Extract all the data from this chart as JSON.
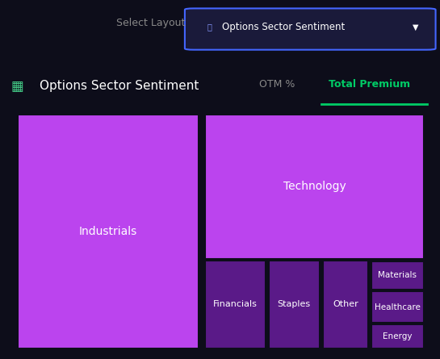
{
  "title": "Options Sector Sentiment",
  "subtitle_left": "OTM %",
  "subtitle_right": "Total Premium",
  "header_text": "Options Sector Sentiment",
  "select_layout_text": "Select Layout",
  "background_color": "#0d0d1a",
  "header_bg": "#0d0d1a",
  "treemap_border_color": "#1a1a2e",
  "sectors": [
    {
      "name": "Industrials",
      "value": 38,
      "color": "#cc44dd"
    },
    {
      "name": "Technology",
      "value": 30,
      "color": "#cc44dd"
    },
    {
      "name": "Financials",
      "value": 10,
      "color": "#6622aa"
    },
    {
      "name": "Staples",
      "value": 8,
      "color": "#6622aa"
    },
    {
      "name": "Other",
      "value": 7,
      "color": "#6622aa"
    },
    {
      "name": "Materials",
      "value": 3,
      "color": "#6622aa"
    },
    {
      "name": "Healthcare",
      "value": 3,
      "color": "#6622aa"
    },
    {
      "name": "Energy",
      "value": 1,
      "color": "#6622aa"
    }
  ],
  "large_color": "#bb44ee",
  "small_color": "#5a1a88",
  "text_color": "#ffffff",
  "accent_green": "#00cc66",
  "tab_color": "#888888",
  "button_border": "#4466ff",
  "button_bg": "#1a1a3a",
  "button_text": "#ffffff",
  "icon_color": "#44cc88"
}
